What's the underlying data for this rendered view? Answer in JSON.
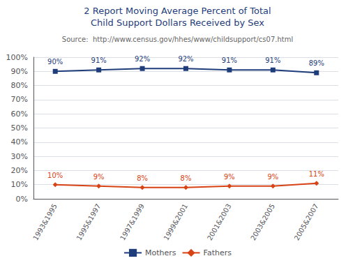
{
  "chart_data": {
    "type": "line",
    "title": "2 Report Moving Average Percent of Total",
    "subtitle": "Child Support Dollars Received by Sex",
    "annotations": [
      "Source:  http://www.census.gov/hhes/www/childsupport/cs07.html"
    ],
    "categories": [
      "1993&1995",
      "1995&1997",
      "1997&1999",
      "1999&2001",
      "2001&2003",
      "2003&2005",
      "2005&2007"
    ],
    "series": [
      {
        "name": "Mothers",
        "color": "#1F3D7A",
        "marker": "square",
        "values": [
          90,
          91,
          92,
          92,
          91,
          91,
          89
        ],
        "value_labels": [
          "90%",
          "91%",
          "92%",
          "92%",
          "91%",
          "91%",
          "89%"
        ]
      },
      {
        "name": "Fathers",
        "color": "#D84315",
        "marker": "diamond",
        "values": [
          10,
          9,
          8,
          8,
          9,
          9,
          11
        ],
        "value_labels": [
          "10%",
          "9%",
          "8%",
          "8%",
          "9%",
          "9%",
          "11%"
        ]
      }
    ],
    "ylim": [
      0,
      100
    ],
    "yticks": [
      {
        "value": 0,
        "label": "0%"
      },
      {
        "value": 10,
        "label": "10%"
      },
      {
        "value": 20,
        "label": "20%"
      },
      {
        "value": 30,
        "label": "30%"
      },
      {
        "value": 40,
        "label": "40%"
      },
      {
        "value": 50,
        "label": "50%"
      },
      {
        "value": 60,
        "label": "60%"
      },
      {
        "value": 70,
        "label": "70%"
      },
      {
        "value": 80,
        "label": "80%"
      },
      {
        "value": 90,
        "label": "90%"
      },
      {
        "value": 100,
        "label": "100%"
      }
    ],
    "grid": true,
    "legend": "bottom",
    "data_labels": true
  }
}
